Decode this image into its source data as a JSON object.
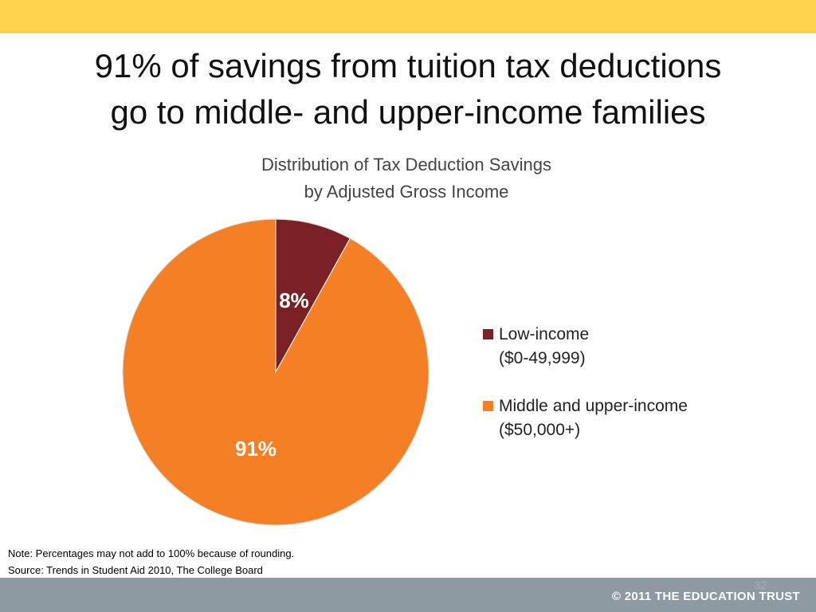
{
  "slide": {
    "title_line1": "91% of savings from tuition tax deductions",
    "title_line2": "go to middle- and upper-income families",
    "slide_number": "32",
    "copyright": "© 2011 THE EDUCATION TRUST"
  },
  "notes": {
    "note": "Note: Percentages may not add to 100% because of rounding.",
    "source": "Source: Trends in Student Aid 2010, The College Board"
  },
  "colors": {
    "top_bar": "#ffd34e",
    "footer_bar": "#8e9aa1",
    "low_income": "#7b2025",
    "middle_upper": "#f47f24"
  },
  "chart_data": {
    "type": "pie",
    "title_line1": "Distribution of Tax Deduction Savings",
    "title_line2": "by Adjusted Gross Income",
    "legend_position": "right",
    "slices": [
      {
        "label": "Low-income",
        "sublabel": "($0-49,999)",
        "value": 8,
        "display": "8%",
        "color": "#7b2025"
      },
      {
        "label": "Middle and upper-income",
        "sublabel": "($50,000+)",
        "value": 91,
        "display": "91%",
        "color": "#f47f24"
      }
    ]
  }
}
